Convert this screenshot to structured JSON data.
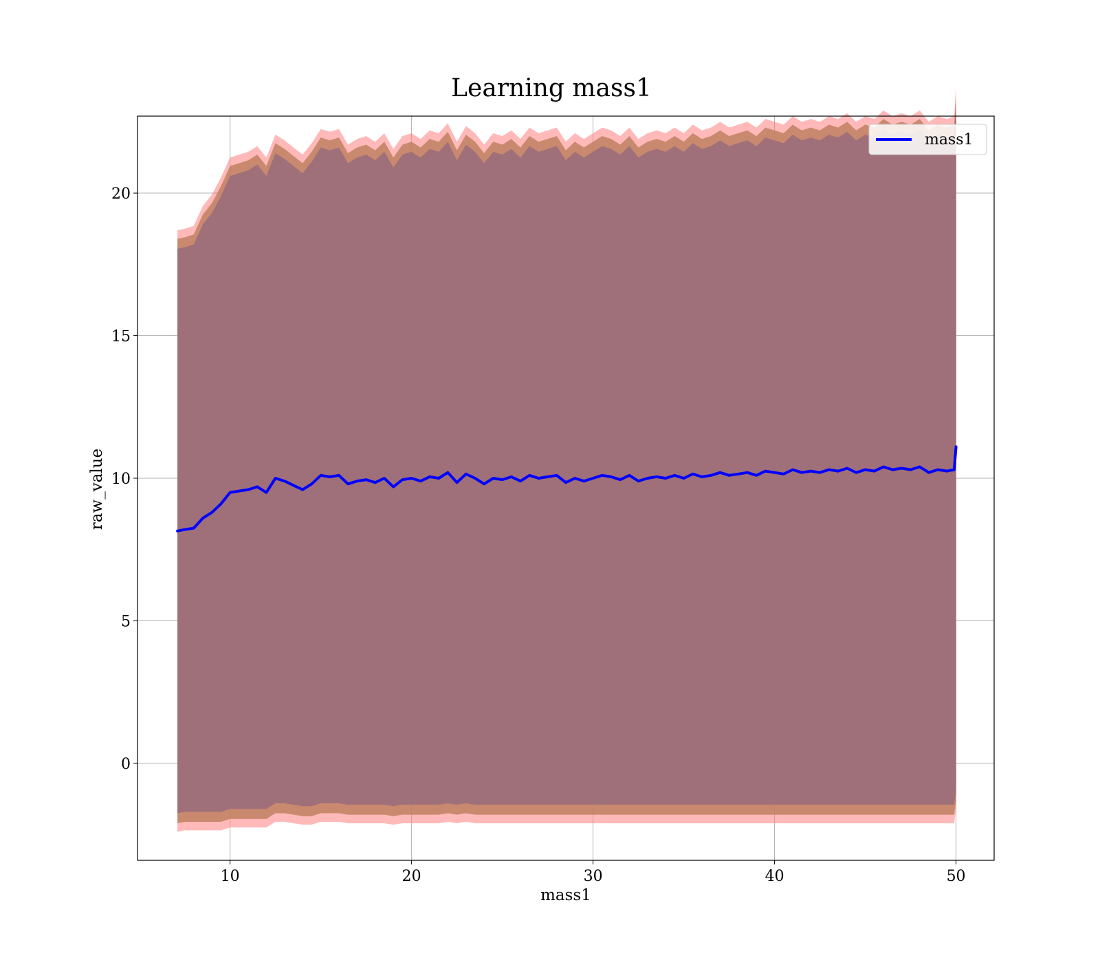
{
  "chart_data": {
    "type": "line",
    "title": "Learning mass1",
    "xlabel": "mass1",
    "ylabel": "raw_value",
    "xlim": [
      4.9,
      52.1
    ],
    "ylim": [
      -3.4,
      22.7
    ],
    "xticks": [
      10,
      20,
      30,
      40,
      50
    ],
    "yticks": [
      0,
      5,
      10,
      15,
      20
    ],
    "grid": true,
    "legend": {
      "position": "top-right",
      "entries": [
        "mass1"
      ]
    },
    "colors": {
      "line": "#0000ff",
      "band_outer": "#ff7f7f",
      "band_mid": "#c08060",
      "band_inner": "#a0707a",
      "grid": "#b0b0b0"
    },
    "series": [
      {
        "name": "mass1",
        "x": [
          7.1,
          7.5,
          8.0,
          8.5,
          9.0,
          9.5,
          10.0,
          10.5,
          11.0,
          11.5,
          12.0,
          12.5,
          13.0,
          13.5,
          14.0,
          14.5,
          15.0,
          15.5,
          16.0,
          16.5,
          17.0,
          17.5,
          18.0,
          18.5,
          19.0,
          19.5,
          20.0,
          20.5,
          21.0,
          21.5,
          22.0,
          22.5,
          23.0,
          23.5,
          24.0,
          24.5,
          25.0,
          25.5,
          26.0,
          26.5,
          27.0,
          27.5,
          28.0,
          28.5,
          29.0,
          29.5,
          30.0,
          30.5,
          31.0,
          31.5,
          32.0,
          32.5,
          33.0,
          33.5,
          34.0,
          34.5,
          35.0,
          35.5,
          36.0,
          36.5,
          37.0,
          37.5,
          38.0,
          38.5,
          39.0,
          39.5,
          40.0,
          40.5,
          41.0,
          41.5,
          42.0,
          42.5,
          43.0,
          43.5,
          44.0,
          44.5,
          45.0,
          45.5,
          46.0,
          46.5,
          47.0,
          47.5,
          48.0,
          48.5,
          49.0,
          49.5,
          49.9,
          50.0
        ],
        "y": [
          8.15,
          8.2,
          8.25,
          8.6,
          8.8,
          9.1,
          9.5,
          9.55,
          9.6,
          9.7,
          9.5,
          10.0,
          9.9,
          9.75,
          9.6,
          9.8,
          10.1,
          10.05,
          10.1,
          9.8,
          9.9,
          9.95,
          9.85,
          10.0,
          9.7,
          9.95,
          10.0,
          9.9,
          10.05,
          10.0,
          10.2,
          9.85,
          10.15,
          10.0,
          9.8,
          10.0,
          9.95,
          10.05,
          9.9,
          10.1,
          10.0,
          10.05,
          10.1,
          9.85,
          10.0,
          9.9,
          10.0,
          10.1,
          10.05,
          9.95,
          10.1,
          9.9,
          10.0,
          10.05,
          10.0,
          10.1,
          10.0,
          10.15,
          10.05,
          10.1,
          10.2,
          10.1,
          10.15,
          10.2,
          10.1,
          10.25,
          10.2,
          10.15,
          10.3,
          10.2,
          10.25,
          10.2,
          10.3,
          10.25,
          10.35,
          10.2,
          10.3,
          10.25,
          10.4,
          10.3,
          10.35,
          10.3,
          10.4,
          10.2,
          10.3,
          10.25,
          10.3,
          11.1
        ],
        "band_inner": [
          9.9,
          9.9,
          9.95,
          10.3,
          10.5,
          10.8,
          11.1,
          11.15,
          11.2,
          11.3,
          11.1,
          11.4,
          11.3,
          11.2,
          11.1,
          11.3,
          11.5,
          11.45,
          11.5,
          11.25,
          11.35,
          11.4,
          11.3,
          11.45,
          11.2,
          11.4,
          11.45,
          11.35,
          11.5,
          11.45,
          11.6,
          11.3,
          11.55,
          11.45,
          11.25,
          11.45,
          11.4,
          11.5,
          11.35,
          11.55,
          11.45,
          11.5,
          11.55,
          11.3,
          11.45,
          11.35,
          11.45,
          11.55,
          11.5,
          11.4,
          11.55,
          11.35,
          11.45,
          11.5,
          11.45,
          11.55,
          11.45,
          11.6,
          11.5,
          11.55,
          11.65,
          11.55,
          11.6,
          11.65,
          11.55,
          11.7,
          11.65,
          11.6,
          11.75,
          11.65,
          11.7,
          11.65,
          11.75,
          11.7,
          11.8,
          11.65,
          11.75,
          11.7,
          11.85,
          11.75,
          11.8,
          11.75,
          11.85,
          11.65,
          11.75,
          11.7,
          11.75,
          12.0
        ],
        "band_mid": [
          10.25,
          10.25,
          10.3,
          10.65,
          10.85,
          11.15,
          11.45,
          11.5,
          11.55,
          11.65,
          11.45,
          11.75,
          11.65,
          11.55,
          11.45,
          11.65,
          11.85,
          11.8,
          11.85,
          11.6,
          11.7,
          11.75,
          11.65,
          11.8,
          11.55,
          11.75,
          11.8,
          11.7,
          11.85,
          11.8,
          11.95,
          11.65,
          11.9,
          11.8,
          11.6,
          11.8,
          11.75,
          11.85,
          11.7,
          11.9,
          11.8,
          11.85,
          11.9,
          11.65,
          11.8,
          11.7,
          11.8,
          11.9,
          11.85,
          11.75,
          11.9,
          11.7,
          11.8,
          11.85,
          11.8,
          11.9,
          11.8,
          11.95,
          11.85,
          11.9,
          12.0,
          11.9,
          11.95,
          12.0,
          11.9,
          12.05,
          12.0,
          11.95,
          12.1,
          12.0,
          12.05,
          12.0,
          12.1,
          12.05,
          12.15,
          12.0,
          12.1,
          12.05,
          12.2,
          12.1,
          12.15,
          12.1,
          12.2,
          12.0,
          12.1,
          12.05,
          12.1,
          12.35
        ],
        "band_outer": [
          10.55,
          10.55,
          10.6,
          10.95,
          11.15,
          11.45,
          11.75,
          11.8,
          11.85,
          11.95,
          11.75,
          12.05,
          11.95,
          11.85,
          11.75,
          11.95,
          12.15,
          12.1,
          12.15,
          11.9,
          12.0,
          12.05,
          11.95,
          12.1,
          11.85,
          12.05,
          12.1,
          12.0,
          12.15,
          12.1,
          12.25,
          11.95,
          12.2,
          12.1,
          11.9,
          12.1,
          12.05,
          12.15,
          12.0,
          12.2,
          12.1,
          12.15,
          12.2,
          11.95,
          12.1,
          12.0,
          12.1,
          12.2,
          12.15,
          12.05,
          12.2,
          12.0,
          12.1,
          12.15,
          12.1,
          12.2,
          12.1,
          12.25,
          12.15,
          12.2,
          12.3,
          12.2,
          12.25,
          12.3,
          12.2,
          12.35,
          12.3,
          12.25,
          12.4,
          12.3,
          12.35,
          12.3,
          12.4,
          12.35,
          12.45,
          12.3,
          12.4,
          12.35,
          12.5,
          12.4,
          12.45,
          12.4,
          12.5,
          12.3,
          12.4,
          12.35,
          12.4,
          12.65
        ]
      }
    ]
  }
}
